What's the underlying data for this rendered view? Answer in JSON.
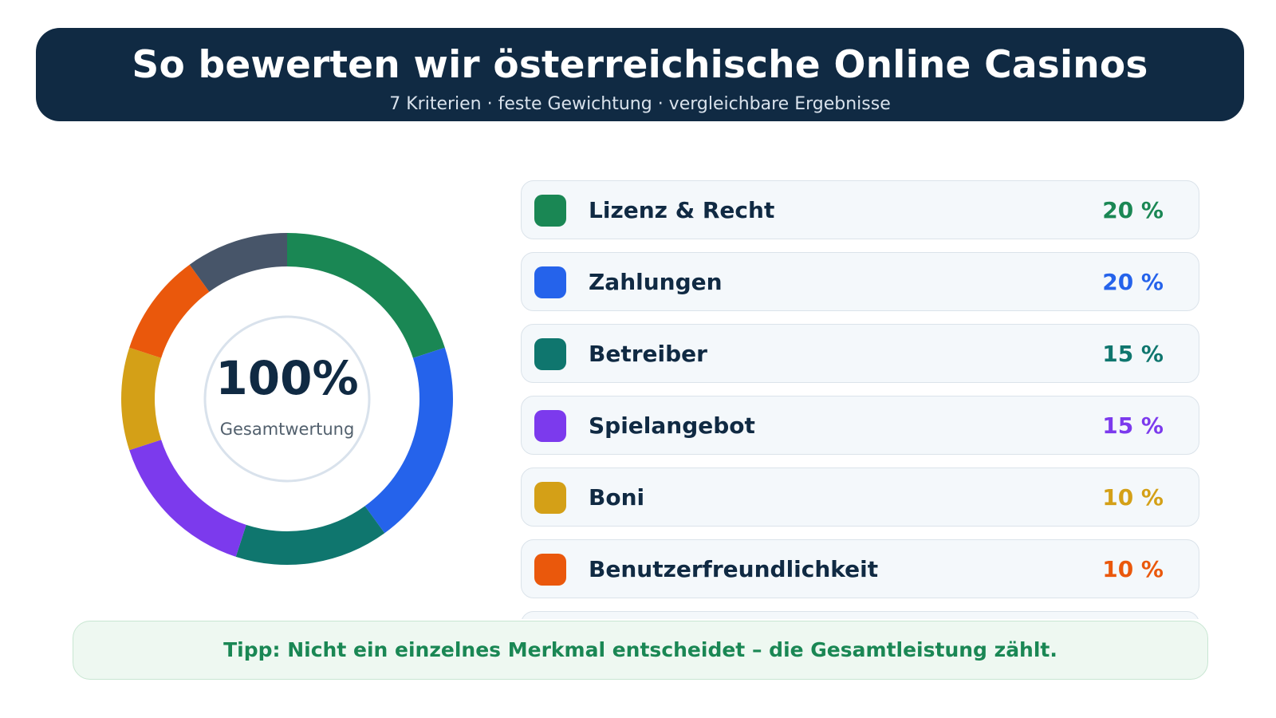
{
  "header": {
    "title": "So bewerten wir österreichische Online Casinos",
    "subtitle": "7 Kriterien · feste Gewichtung · vergleichbare Ergebnisse"
  },
  "donut": {
    "total_label": "100%",
    "caption": "Gesamtwertung"
  },
  "chart_data": {
    "type": "pie",
    "title": "So bewerten wir österreichische Online Casinos",
    "unit": "%",
    "categories": [
      "Lizenz & Recht",
      "Zahlungen",
      "Betreiber",
      "Spielangebot",
      "Boni",
      "Benutzerfreundlichkeit",
      ""
    ],
    "values": [
      20,
      20,
      15,
      15,
      10,
      10,
      10
    ],
    "value_labels": [
      "20 %",
      "20 %",
      "15 %",
      "15 %",
      "10 %",
      "10 %",
      ""
    ],
    "colors": [
      "#1a8754",
      "#2563eb",
      "#0f766e",
      "#7c3aed",
      "#d4a017",
      "#ea580c",
      "#475569"
    ],
    "legend": "right",
    "donut": true
  },
  "tip": {
    "text": "Tipp: Nicht ein einzelnes Merkmal entscheidet – die Gesamtleistung zählt."
  }
}
